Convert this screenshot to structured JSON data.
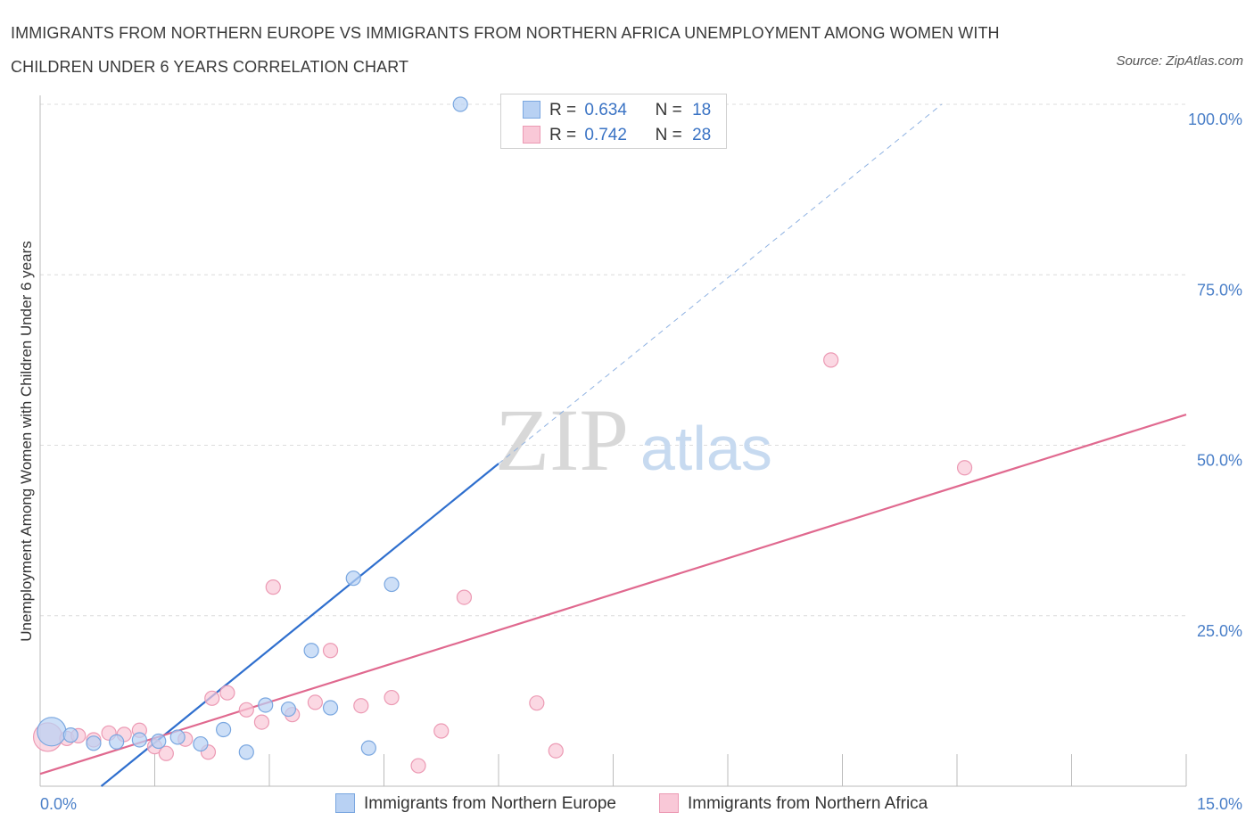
{
  "title": "IMMIGRANTS FROM NORTHERN EUROPE VS IMMIGRANTS FROM NORTHERN AFRICA UNEMPLOYMENT AMONG WOMEN WITH CHILDREN UNDER 6 YEARS CORRELATION CHART",
  "source": "Source: ZipAtlas.com",
  "watermark": {
    "zip": "ZIP",
    "atlas": "atlas"
  },
  "legend": {
    "r_label": "R =",
    "n_label": "N =",
    "series_a": {
      "r": "0.634",
      "n": "18"
    },
    "series_b": {
      "r": "0.742",
      "n": "28"
    }
  },
  "bottom_legend": {
    "series_a": "Immigrants from Northern Europe",
    "series_b": "Immigrants from Northern Africa"
  },
  "chart_data": {
    "type": "scatter",
    "xlabel": "",
    "ylabel": "Unemployment Among Women with Children Under 6 years",
    "xlim": [
      0,
      15
    ],
    "ylim": [
      0,
      100
    ],
    "x_tick_labels": [
      "0.0%",
      "15.0%"
    ],
    "y_ticks": [
      25,
      50,
      75,
      100
    ],
    "y_tick_labels": [
      "25.0%",
      "50.0%",
      "75.0%",
      "100.0%"
    ],
    "grid": "horizontal dashed",
    "legend_position": "top-center",
    "colors": {
      "series_a_fill": "#b8d1f3",
      "series_a_stroke": "#7aa7e0",
      "series_a_line": "#2f6fce",
      "series_b_fill": "#f9c8d7",
      "series_b_stroke": "#ec9ab4",
      "series_b_line": "#e0698f"
    },
    "series": [
      {
        "name": "Immigrants from Northern Europe",
        "r": 0.634,
        "n": 18,
        "points": [
          {
            "x": 0.15,
            "y": 8.0,
            "size": "large"
          },
          {
            "x": 0.4,
            "y": 7.5
          },
          {
            "x": 0.7,
            "y": 6.3
          },
          {
            "x": 1.0,
            "y": 6.5
          },
          {
            "x": 1.3,
            "y": 6.8
          },
          {
            "x": 1.55,
            "y": 6.6
          },
          {
            "x": 1.8,
            "y": 7.2
          },
          {
            "x": 2.1,
            "y": 6.2
          },
          {
            "x": 2.4,
            "y": 8.3
          },
          {
            "x": 2.7,
            "y": 5.0
          },
          {
            "x": 2.95,
            "y": 11.9
          },
          {
            "x": 3.25,
            "y": 11.3
          },
          {
            "x": 3.55,
            "y": 19.9
          },
          {
            "x": 3.8,
            "y": 11.5
          },
          {
            "x": 4.1,
            "y": 30.5
          },
          {
            "x": 4.3,
            "y": 5.6
          },
          {
            "x": 4.6,
            "y": 29.6
          },
          {
            "x": 5.5,
            "y": 100.0
          }
        ],
        "trendline": {
          "x": [
            0.8,
            6.0
          ],
          "y": [
            0.0,
            47.3
          ],
          "dashed_extension_to": [
            11.8,
            100.0
          ]
        }
      },
      {
        "name": "Immigrants from Northern Africa",
        "r": 0.742,
        "n": 28,
        "points": [
          {
            "x": 0.1,
            "y": 7.2,
            "size": "large"
          },
          {
            "x": 0.35,
            "y": 7.0
          },
          {
            "x": 0.5,
            "y": 7.4
          },
          {
            "x": 0.7,
            "y": 6.8
          },
          {
            "x": 0.9,
            "y": 7.8
          },
          {
            "x": 1.1,
            "y": 7.6
          },
          {
            "x": 1.3,
            "y": 8.2
          },
          {
            "x": 1.5,
            "y": 5.8
          },
          {
            "x": 1.65,
            "y": 4.8
          },
          {
            "x": 1.9,
            "y": 6.9
          },
          {
            "x": 2.2,
            "y": 5.0
          },
          {
            "x": 2.25,
            "y": 12.9
          },
          {
            "x": 2.45,
            "y": 13.7
          },
          {
            "x": 2.7,
            "y": 11.2
          },
          {
            "x": 2.9,
            "y": 9.4
          },
          {
            "x": 3.05,
            "y": 29.2
          },
          {
            "x": 3.3,
            "y": 10.5
          },
          {
            "x": 3.6,
            "y": 12.3
          },
          {
            "x": 3.8,
            "y": 19.9
          },
          {
            "x": 4.2,
            "y": 11.8
          },
          {
            "x": 4.6,
            "y": 13.0
          },
          {
            "x": 4.95,
            "y": 3.0
          },
          {
            "x": 5.25,
            "y": 8.1
          },
          {
            "x": 5.55,
            "y": 27.7
          },
          {
            "x": 6.5,
            "y": 12.2
          },
          {
            "x": 6.75,
            "y": 5.2
          },
          {
            "x": 10.35,
            "y": 62.5
          },
          {
            "x": 12.1,
            "y": 46.7
          }
        ],
        "trendline": {
          "x": [
            0.0,
            15.0
          ],
          "y": [
            1.8,
            54.5
          ]
        }
      }
    ]
  }
}
